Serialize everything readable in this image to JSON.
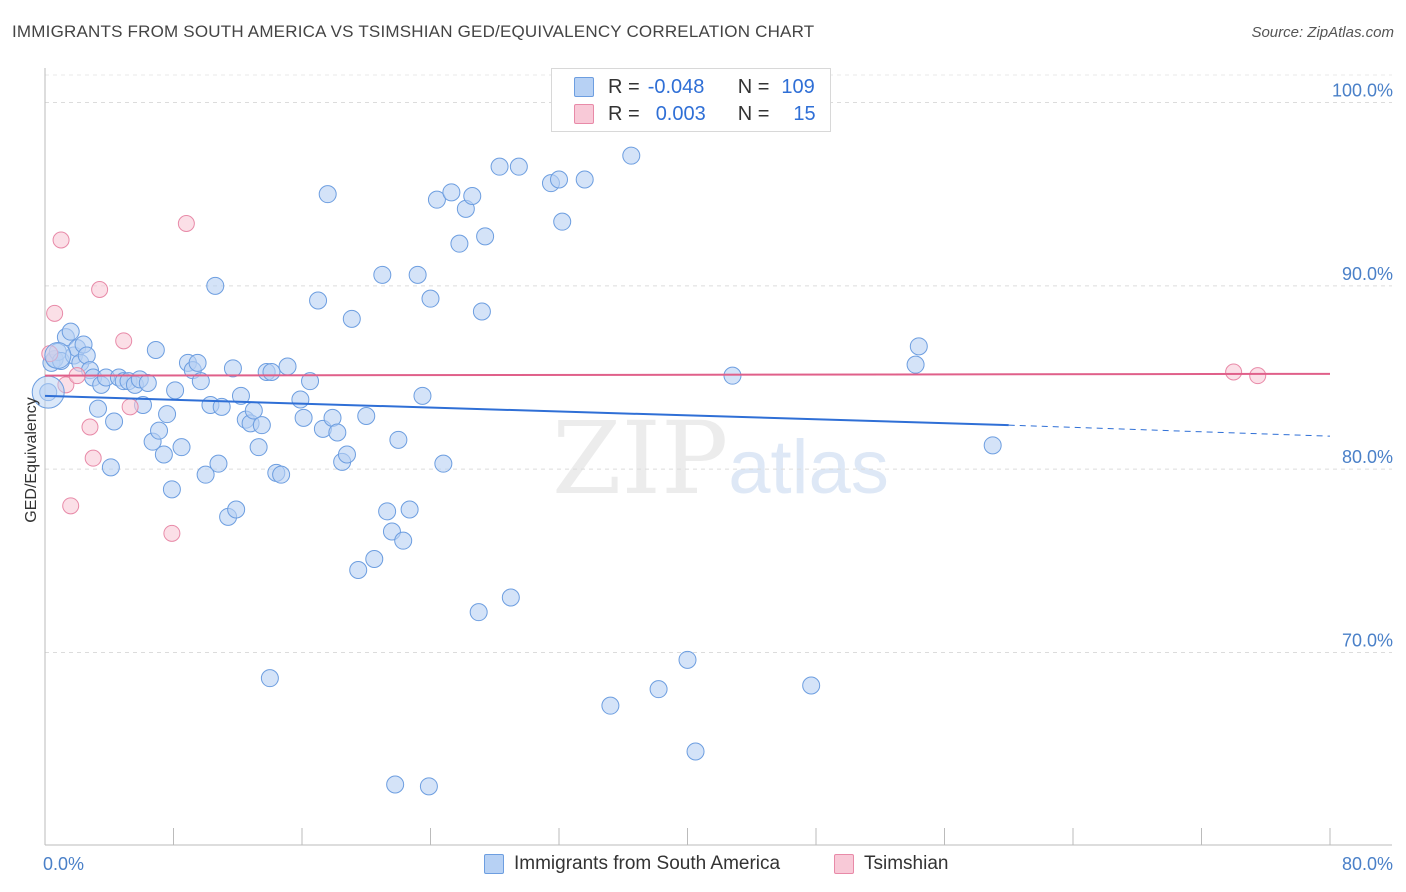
{
  "title": "IMMIGRANTS FROM SOUTH AMERICA VS TSIMSHIAN GED/EQUIVALENCY CORRELATION CHART",
  "source": "Source: ZipAtlas.com",
  "watermark": {
    "zip": "ZIP",
    "atlas": "atlas"
  },
  "legend": {
    "row1": {
      "r_label": "R =",
      "r_value": "-0.048",
      "n_label": "N =",
      "n_value": "109"
    },
    "row2": {
      "r_label": "R =",
      "r_value": "0.003",
      "n_label": "N =",
      "n_value": "15"
    }
  },
  "bottom_legend": {
    "series1": "Immigrants from South America",
    "series2": "Tsimshian"
  },
  "colors": {
    "blue": "#6d9ee0",
    "blue_fill": "#b7d1f4",
    "blue_line": "#2f6fd6",
    "pink": "#e88aa8",
    "pink_fill": "#f8c9d7",
    "pink_line": "#e0608a"
  },
  "chart_data": {
    "type": "scatter",
    "title": "IMMIGRANTS FROM SOUTH AMERICA VS TSIMSHIAN GED/EQUIVALENCY CORRELATION CHART",
    "xlabel": "",
    "ylabel": "GED/Equivalency",
    "xlim": [
      0,
      80
    ],
    "ylim": [
      59.5,
      101.5
    ],
    "x_tick_labels": [
      "0.0%",
      "80.0%"
    ],
    "y_ticks": [
      70,
      80,
      90,
      100
    ],
    "y_tick_labels": [
      "70.0%",
      "80.0%",
      "90.0%",
      "100.0%"
    ],
    "series": [
      {
        "name": "Immigrants from South America",
        "trend": {
          "x0": 0,
          "y0": 84.0,
          "x1": 60,
          "y1": 82.4,
          "dash_to_x": 80,
          "dash_to_y": 81.8
        },
        "points": [
          [
            0.2,
            84.2
          ],
          [
            0.4,
            85.8
          ],
          [
            0.6,
            86.0
          ],
          [
            0.8,
            86.4
          ],
          [
            1.0,
            85.9
          ],
          [
            1.3,
            87.2
          ],
          [
            1.6,
            87.5
          ],
          [
            1.8,
            86.2
          ],
          [
            2.0,
            86.6
          ],
          [
            2.2,
            85.8
          ],
          [
            2.4,
            86.8
          ],
          [
            2.6,
            86.2
          ],
          [
            2.8,
            85.4
          ],
          [
            3.0,
            85.0
          ],
          [
            3.3,
            83.3
          ],
          [
            3.5,
            84.6
          ],
          [
            3.8,
            85.0
          ],
          [
            4.1,
            80.1
          ],
          [
            4.3,
            82.6
          ],
          [
            4.6,
            85.0
          ],
          [
            4.9,
            84.8
          ],
          [
            5.2,
            84.8
          ],
          [
            5.6,
            84.6
          ],
          [
            5.9,
            84.9
          ],
          [
            6.1,
            83.5
          ],
          [
            6.4,
            84.7
          ],
          [
            6.7,
            81.5
          ],
          [
            6.9,
            86.5
          ],
          [
            7.1,
            82.1
          ],
          [
            7.4,
            80.8
          ],
          [
            7.6,
            83.0
          ],
          [
            7.9,
            78.9
          ],
          [
            8.1,
            84.3
          ],
          [
            8.5,
            81.2
          ],
          [
            8.9,
            85.8
          ],
          [
            9.2,
            85.4
          ],
          [
            9.5,
            85.8
          ],
          [
            9.7,
            84.8
          ],
          [
            10.0,
            79.7
          ],
          [
            10.3,
            83.5
          ],
          [
            10.6,
            90.0
          ],
          [
            10.8,
            80.3
          ],
          [
            11.0,
            83.4
          ],
          [
            11.4,
            77.4
          ],
          [
            11.7,
            85.5
          ],
          [
            11.9,
            77.8
          ],
          [
            12.2,
            84.0
          ],
          [
            12.5,
            82.7
          ],
          [
            12.8,
            82.5
          ],
          [
            13.0,
            83.2
          ],
          [
            13.3,
            81.2
          ],
          [
            13.5,
            82.4
          ],
          [
            13.8,
            85.3
          ],
          [
            14.1,
            85.3
          ],
          [
            14.4,
            79.8
          ],
          [
            14.7,
            79.7
          ],
          [
            15.1,
            85.6
          ],
          [
            15.9,
            83.8
          ],
          [
            16.1,
            82.8
          ],
          [
            16.5,
            84.8
          ],
          [
            17.0,
            89.2
          ],
          [
            17.3,
            82.2
          ],
          [
            17.6,
            95.0
          ],
          [
            17.9,
            82.8
          ],
          [
            18.2,
            82.0
          ],
          [
            18.5,
            80.4
          ],
          [
            18.8,
            80.8
          ],
          [
            19.1,
            88.2
          ],
          [
            19.5,
            74.5
          ],
          [
            20.0,
            82.9
          ],
          [
            20.5,
            75.1
          ],
          [
            21.0,
            90.6
          ],
          [
            21.3,
            77.7
          ],
          [
            21.6,
            76.6
          ],
          [
            22.0,
            81.6
          ],
          [
            22.3,
            76.1
          ],
          [
            22.7,
            77.8
          ],
          [
            23.2,
            90.6
          ],
          [
            23.5,
            84.0
          ],
          [
            24.0,
            89.3
          ],
          [
            24.4,
            94.7
          ],
          [
            24.8,
            80.3
          ],
          [
            25.3,
            95.1
          ],
          [
            25.8,
            92.3
          ],
          [
            26.2,
            94.2
          ],
          [
            26.6,
            94.9
          ],
          [
            27.2,
            88.6
          ],
          [
            27.4,
            92.7
          ],
          [
            28.3,
            96.5
          ],
          [
            29.0,
            73.0
          ],
          [
            29.5,
            96.5
          ],
          [
            31.5,
            95.6
          ],
          [
            32.0,
            95.8
          ],
          [
            32.2,
            93.5
          ],
          [
            33.6,
            95.8
          ],
          [
            35.2,
            67.1
          ],
          [
            36.5,
            97.1
          ],
          [
            38.2,
            68.0
          ],
          [
            40.0,
            69.6
          ],
          [
            40.5,
            64.6
          ],
          [
            42.8,
            85.1
          ],
          [
            47.7,
            68.2
          ],
          [
            54.2,
            85.7
          ],
          [
            54.4,
            86.7
          ],
          [
            59.0,
            81.3
          ],
          [
            23.9,
            62.7
          ],
          [
            21.8,
            62.8
          ],
          [
            14.0,
            68.6
          ],
          [
            27.0,
            72.2
          ]
        ]
      },
      {
        "name": "Tsimshian",
        "trend": {
          "x0": 0,
          "y0": 85.1,
          "x1": 80,
          "y1": 85.2
        },
        "points": [
          [
            0.3,
            86.3
          ],
          [
            0.6,
            88.5
          ],
          [
            1.0,
            92.5
          ],
          [
            1.3,
            84.6
          ],
          [
            1.6,
            78.0
          ],
          [
            2.0,
            85.1
          ],
          [
            2.8,
            82.3
          ],
          [
            3.0,
            80.6
          ],
          [
            3.4,
            89.8
          ],
          [
            4.9,
            87.0
          ],
          [
            5.3,
            83.4
          ],
          [
            7.9,
            76.5
          ],
          [
            8.8,
            93.4
          ],
          [
            74.0,
            85.3
          ],
          [
            75.5,
            85.1
          ]
        ]
      }
    ]
  }
}
